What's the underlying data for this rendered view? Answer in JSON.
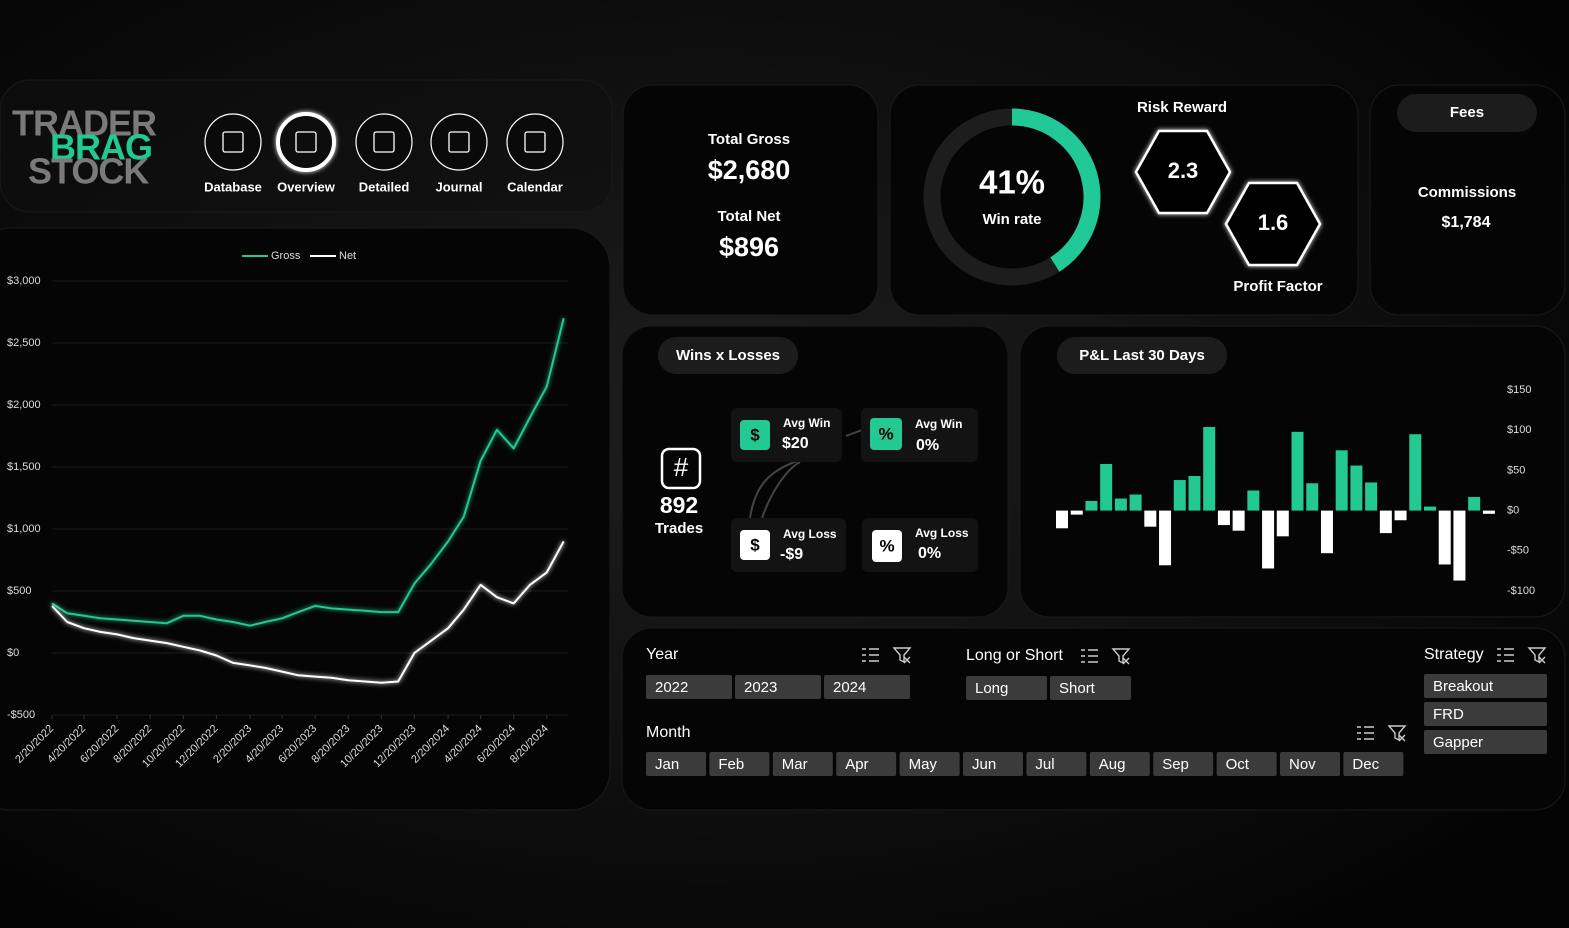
{
  "logo": [
    "TRADER",
    "BRAG",
    "STOCK"
  ],
  "nav": [
    "Database",
    "Overview",
    "Detailed",
    "Journal",
    "Calendar"
  ],
  "active_nav": 1,
  "totals": {
    "gross": {
      "label": "Total Gross",
      "value": "$2,680"
    },
    "net": {
      "label": "Total Net",
      "value": "$896"
    }
  },
  "win_rate": {
    "value": 41,
    "value_label": "41%",
    "caption": "Win rate",
    "color": "#20c997"
  },
  "risk_reward": {
    "label": "Risk Reward",
    "value": "2.3"
  },
  "profit_factor": {
    "label": "Profit Factor",
    "value": "1.6"
  },
  "fees": {
    "title": "Fees",
    "label": "Commissions",
    "value": "$1,784"
  },
  "wins_losses": {
    "title": "Wins x Losses",
    "trades": {
      "icon": "#",
      "value": "892",
      "label": "Trades"
    },
    "avg_win": {
      "icon": "$",
      "label": "Avg Win",
      "value": "$20"
    },
    "avg_win_pct": {
      "icon": "%",
      "label": "Avg Win",
      "value": "0%"
    },
    "avg_loss": {
      "icon": "$",
      "label": "Avg Loss",
      "value": "-$9"
    },
    "avg_loss_pct": {
      "icon": "%",
      "label": "Avg Loss",
      "value": "0%"
    }
  },
  "filters": {
    "year": {
      "label": "Year",
      "options": [
        "2022",
        "2023",
        "2024"
      ]
    },
    "side": {
      "label": "Long or Short",
      "options": [
        "Long",
        "Short"
      ]
    },
    "strategy": {
      "label": "Strategy",
      "options": [
        "Breakout",
        "FRD",
        "Gapper"
      ]
    },
    "month": {
      "label": "Month",
      "options": [
        "Jan",
        "Feb",
        "Mar",
        "Apr",
        "May",
        "Jun",
        "Jul",
        "Aug",
        "Sep",
        "Oct",
        "Nov",
        "Dec"
      ]
    }
  },
  "chart_data": [
    {
      "type": "line",
      "legend": "top",
      "x": [
        "2/20/2022",
        "3/20/2022",
        "4/20/2022",
        "5/20/2022",
        "6/20/2022",
        "7/20/2022",
        "8/20/2022",
        "9/20/2022",
        "10/20/2022",
        "11/20/2022",
        "12/20/2022",
        "1/20/2023",
        "2/20/2023",
        "3/20/2023",
        "4/20/2023",
        "5/20/2023",
        "6/20/2023",
        "7/20/2023",
        "8/20/2023",
        "9/20/2023",
        "10/20/2023",
        "11/20/2023",
        "12/20/2023",
        "1/20/2024",
        "2/20/2024",
        "3/20/2024",
        "4/20/2024",
        "5/20/2024",
        "6/20/2024",
        "7/20/2024",
        "8/20/2024",
        "9/20/2024"
      ],
      "xlim": [
        "2/20/2022",
        "9/28/2024"
      ],
      "xticks": [
        "2/20/2022",
        "4/20/2022",
        "6/20/2022",
        "8/20/2022",
        "10/20/2022",
        "12/20/2022",
        "2/20/2023",
        "4/20/2023",
        "6/20/2023",
        "8/20/2023",
        "10/20/2023",
        "12/20/2023",
        "2/20/2024",
        "4/20/2024",
        "6/20/2024",
        "8/20/2024"
      ],
      "series": [
        {
          "name": "Gross",
          "color": "#22c993",
          "values": [
            400,
            320,
            300,
            280,
            270,
            260,
            250,
            240,
            300,
            300,
            270,
            250,
            220,
            250,
            280,
            330,
            380,
            360,
            350,
            340,
            330,
            330,
            560,
            720,
            900,
            1100,
            1550,
            1800,
            1650,
            1900,
            2150,
            2700
          ]
        },
        {
          "name": "Net",
          "color": "#ffffff",
          "values": [
            380,
            250,
            200,
            170,
            150,
            120,
            100,
            80,
            50,
            20,
            -20,
            -80,
            -100,
            -120,
            -150,
            -180,
            -190,
            -200,
            -220,
            -230,
            -240,
            -230,
            0,
            100,
            200,
            350,
            550,
            450,
            400,
            550,
            650,
            900
          ]
        }
      ],
      "ylim": [
        -500,
        3000
      ],
      "yticks": [
        {
          "value": -500,
          "label": "-$500"
        },
        {
          "value": 0,
          "label": "$0"
        },
        {
          "value": 500,
          "label": "$500"
        },
        {
          "value": 1000,
          "label": "$1,000"
        },
        {
          "value": 1500,
          "label": "$1,500"
        },
        {
          "value": 2000,
          "label": "$2,000"
        },
        {
          "value": 2500,
          "label": "$2,500"
        },
        {
          "value": 3000,
          "label": "$3,000"
        }
      ],
      "grid": true
    },
    {
      "type": "bar",
      "title": "P&L Last 30 Days",
      "values": [
        -22,
        -5,
        12,
        58,
        15,
        20,
        -20,
        -68,
        38,
        43,
        104,
        -18,
        -25,
        25,
        -72,
        -32,
        98,
        34,
        -53,
        75,
        56,
        35,
        -28,
        -12,
        95,
        5,
        -67,
        -87,
        17,
        -4
      ],
      "positive_color": "#22c993",
      "negative_color": "#ffffff",
      "ylim": [
        -100,
        150
      ],
      "yticks": [
        {
          "value": -100,
          "label": "-$100"
        },
        {
          "value": -50,
          "label": "-$50"
        },
        {
          "value": 0,
          "label": "$0"
        },
        {
          "value": 50,
          "label": "$50"
        },
        {
          "value": 100,
          "label": "$100"
        },
        {
          "value": 150,
          "label": "$150"
        }
      ]
    }
  ]
}
